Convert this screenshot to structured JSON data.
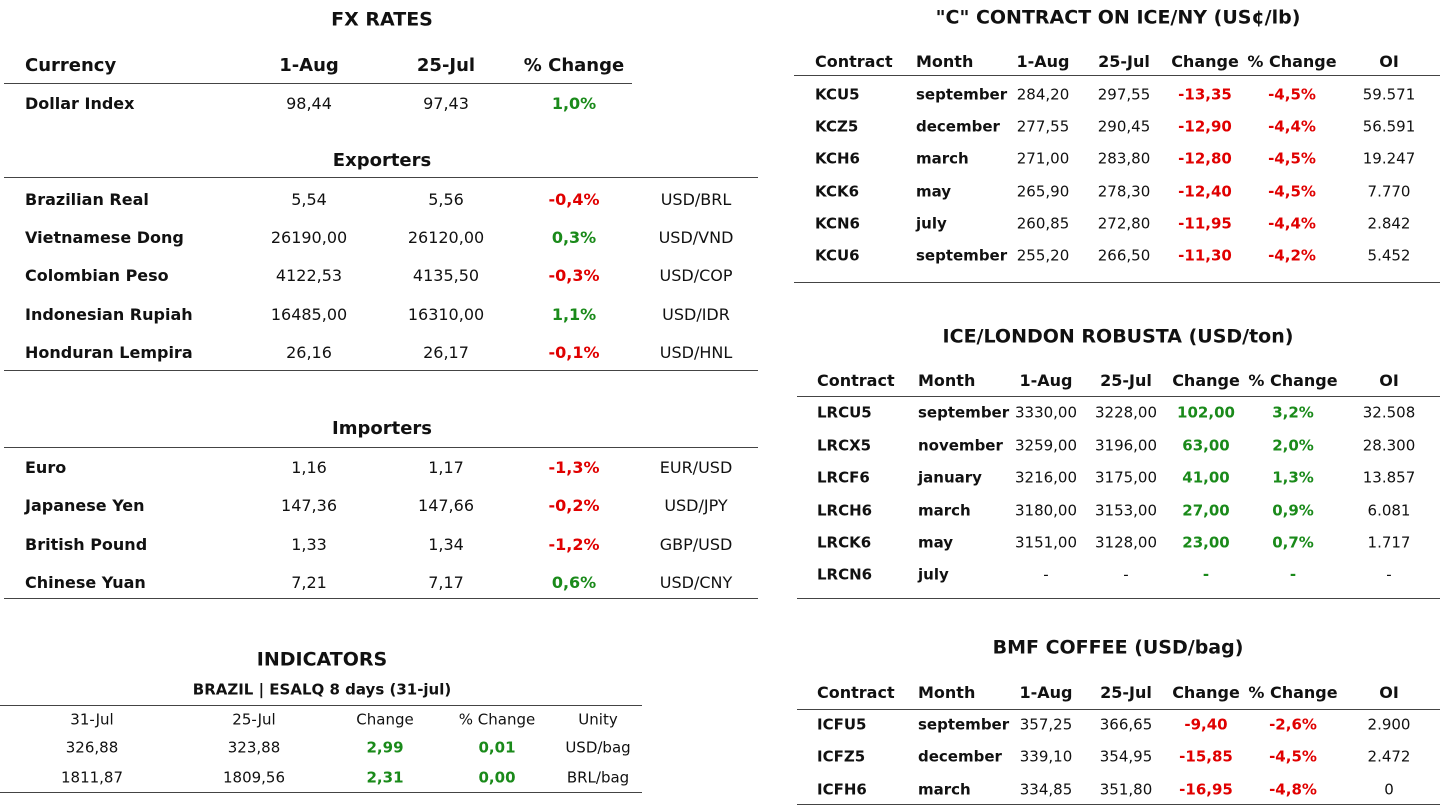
{
  "fx": {
    "title": "FX RATES",
    "header": [
      "Currency",
      "1-Aug",
      "25-Jul",
      "% Change"
    ],
    "dollar_index": [
      "Dollar Index",
      "98,44",
      "97,43",
      "1,0%"
    ],
    "exporters": {
      "title": "Exporters",
      "rows": [
        [
          "Brazilian Real",
          "5,54",
          "5,56",
          "-0,4%",
          "USD/BRL"
        ],
        [
          "Vietnamese Dong",
          "26190,00",
          "26120,00",
          "0,3%",
          "USD/VND"
        ],
        [
          "Colombian Peso",
          "4122,53",
          "4135,50",
          "-0,3%",
          "USD/COP"
        ],
        [
          "Indonesian Rupiah",
          "16485,00",
          "16310,00",
          "1,1%",
          "USD/IDR"
        ],
        [
          "Honduran Lempira",
          "26,16",
          "26,17",
          "-0,1%",
          "USD/HNL"
        ]
      ]
    },
    "importers": {
      "title": "Importers",
      "rows": [
        [
          "Euro",
          "1,16",
          "1,17",
          "-1,3%",
          "EUR/USD"
        ],
        [
          "Japanese Yen",
          "147,36",
          "147,66",
          "-0,2%",
          "USD/JPY"
        ],
        [
          "British Pound",
          "1,33",
          "1,34",
          "-1,2%",
          "GBP/USD"
        ],
        [
          "Chinese Yuan",
          "7,21",
          "7,17",
          "0,6%",
          "USD/CNY"
        ]
      ]
    }
  },
  "indicators": {
    "title": "INDICATORS",
    "subtitle": "BRAZIL | ESALQ 8 days (31-jul)",
    "header": [
      "31-Jul",
      "25-Jul",
      "Change",
      "% Change",
      "Unity"
    ],
    "rows": [
      [
        "326,88",
        "323,88",
        "2,99",
        "0,01",
        "USD/bag"
      ],
      [
        "1811,87",
        "1809,56",
        "2,31",
        "0,00",
        "BRL/bag"
      ]
    ]
  },
  "ice_ny": {
    "title": "\"C\" CONTRACT ON ICE/NY (US¢/lb)",
    "header": [
      "Contract",
      "Month",
      "1-Aug",
      "25-Jul",
      "Change",
      "% Change",
      "OI"
    ],
    "rows": [
      [
        "KCU5",
        "september",
        "284,20",
        "297,55",
        "-13,35",
        "-4,5%",
        "59.571"
      ],
      [
        "KCZ5",
        "december",
        "277,55",
        "290,45",
        "-12,90",
        "-4,4%",
        "56.591"
      ],
      [
        "KCH6",
        "march",
        "271,00",
        "283,80",
        "-12,80",
        "-4,5%",
        "19.247"
      ],
      [
        "KCK6",
        "may",
        "265,90",
        "278,30",
        "-12,40",
        "-4,5%",
        "7.770"
      ],
      [
        "KCN6",
        "july",
        "260,85",
        "272,80",
        "-11,95",
        "-4,4%",
        "2.842"
      ],
      [
        "KCU6",
        "september",
        "255,20",
        "266,50",
        "-11,30",
        "-4,2%",
        "5.452"
      ]
    ]
  },
  "robusta": {
    "title": "ICE/LONDON ROBUSTA (USD/ton)",
    "header": [
      "Contract",
      "Month",
      "1-Aug",
      "25-Jul",
      "Change",
      "% Change",
      "OI"
    ],
    "rows": [
      [
        "LRCU5",
        "september",
        "3330,00",
        "3228,00",
        "102,00",
        "3,2%",
        "32.508"
      ],
      [
        "LRCX5",
        "november",
        "3259,00",
        "3196,00",
        "63,00",
        "2,0%",
        "28.300"
      ],
      [
        "LRCF6",
        "january",
        "3216,00",
        "3175,00",
        "41,00",
        "1,3%",
        "13.857"
      ],
      [
        "LRCH6",
        "march",
        "3180,00",
        "3153,00",
        "27,00",
        "0,9%",
        "6.081"
      ],
      [
        "LRCK6",
        "may",
        "3151,00",
        "3128,00",
        "23,00",
        "0,7%",
        "1.717"
      ],
      [
        "LRCN6",
        "july",
        "-",
        "-",
        "-",
        "-",
        "-"
      ]
    ]
  },
  "bmf": {
    "title": "BMF COFFEE (USD/bag)",
    "header": [
      "Contract",
      "Month",
      "1-Aug",
      "25-Jul",
      "Change",
      "% Change",
      "OI"
    ],
    "rows": [
      [
        "ICFU5",
        "september",
        "357,25",
        "366,65",
        "-9,40",
        "-2,6%",
        "2.900"
      ],
      [
        "ICFZ5",
        "december",
        "339,10",
        "354,95",
        "-15,85",
        "-4,5%",
        "2.472"
      ],
      [
        "ICFH6",
        "march",
        "334,85",
        "351,80",
        "-16,95",
        "-4,8%",
        "0"
      ]
    ]
  }
}
